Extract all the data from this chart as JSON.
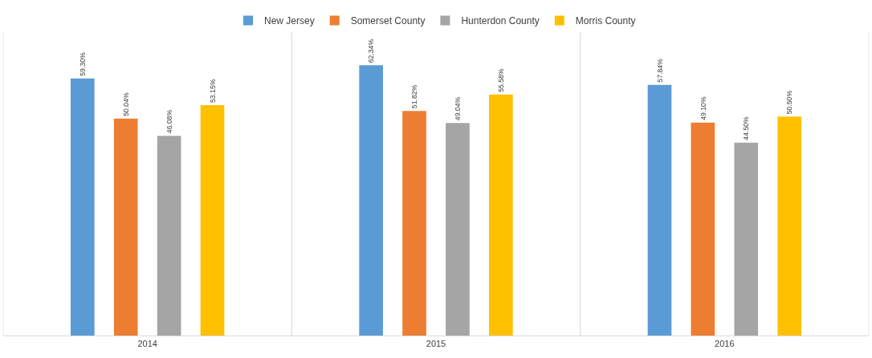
{
  "chart_data": {
    "type": "bar",
    "categories": [
      "2014",
      "2015",
      "2016"
    ],
    "series": [
      {
        "name": "New Jersey",
        "color": "#5b9bd5",
        "values": [
          59.3,
          62.34,
          57.84
        ],
        "value_labels": [
          "59.30%",
          "62.34%",
          "57.84%"
        ]
      },
      {
        "name": "Somerset County",
        "color": "#ed7d31",
        "values": [
          50.04,
          51.82,
          49.1
        ],
        "value_labels": [
          "50.04%",
          "51.82%",
          "49.10%"
        ]
      },
      {
        "name": "Hunterdon County",
        "color": "#a5a5a5",
        "values": [
          46.08,
          49.04,
          44.5
        ],
        "value_labels": [
          "46.08%",
          "49.04%",
          "44.50%"
        ]
      },
      {
        "name": "Morris County",
        "color": "#ffc000",
        "values": [
          53.15,
          55.58,
          50.5
        ],
        "value_labels": [
          "53.15%",
          "55.58%",
          "50.50%"
        ]
      }
    ],
    "ylim": [
      0,
      70
    ],
    "tick_labels": "x",
    "grid": "x",
    "legend": "top"
  }
}
